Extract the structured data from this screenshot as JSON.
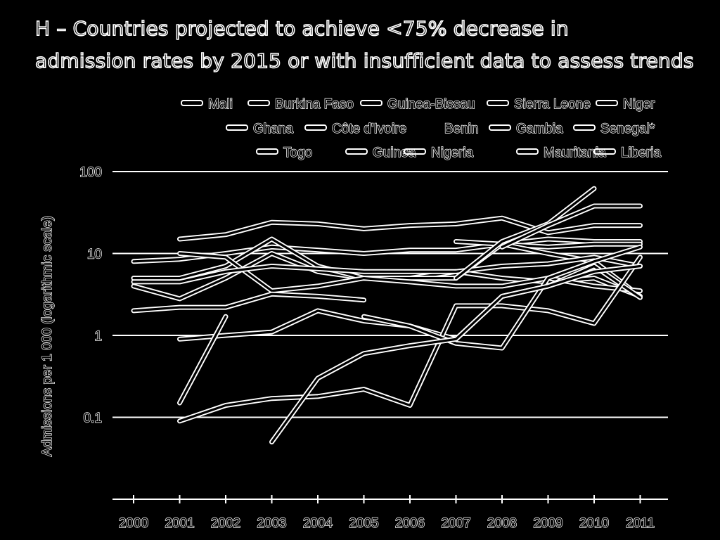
{
  "chart_data": {
    "type": "line",
    "title_line1": "H – Countries projected to achieve <75% decrease in",
    "title_line2": "admission rates by 2015 or with insufficient data to assess trends",
    "ylabel": "Admissions per 1 000 (logarithmic scale)",
    "xlabel": "",
    "y_scale": "log",
    "ylim": [
      0.01,
      100
    ],
    "yticks": [
      "100",
      "10",
      "1",
      "0.1"
    ],
    "x": [
      "2000",
      "2001",
      "2002",
      "2003",
      "2004",
      "2005",
      "2006",
      "2007",
      "2008",
      "2009",
      "2010",
      "2011"
    ],
    "grid": "horizontal",
    "legend_position": "top",
    "series": [
      {
        "name": "Mali",
        "values": [
          8,
          8.5,
          10,
          12,
          11,
          10,
          11,
          11,
          13,
          15,
          14,
          14
        ]
      },
      {
        "name": "Burkina Faso",
        "values": [
          null,
          15,
          17,
          24,
          23,
          20,
          22,
          23,
          27,
          18,
          22,
          22
        ]
      },
      {
        "name": "Guinea-Bissau",
        "values": [
          4,
          2.8,
          5,
          10,
          6,
          5,
          5,
          6,
          5,
          4.5,
          5,
          3
        ]
      },
      {
        "name": "Sierra Leone",
        "values": [
          null,
          null,
          null,
          null,
          null,
          null,
          null,
          14,
          13,
          12,
          13,
          13
        ]
      },
      {
        "name": "Niger",
        "values": [
          5,
          5,
          7,
          15,
          7,
          5,
          5,
          5,
          13,
          10,
          8,
          3
        ]
      },
      {
        "name": "Ghana",
        "values": [
          null,
          10,
          9,
          3.5,
          4,
          5,
          4.5,
          4,
          4,
          5,
          4,
          3.5
        ]
      },
      {
        "name": "Côte d'Ivoire",
        "values": [
          2,
          2.2,
          2.2,
          3.2,
          3,
          2.7,
          null,
          null,
          null,
          null,
          null,
          null
        ]
      },
      {
        "name": "Benin",
        "values": [
          4.5,
          4.5,
          6,
          7,
          6.5,
          6,
          6,
          6,
          7,
          7.5,
          9,
          7
        ]
      },
      {
        "name": "Gambia",
        "values": [
          null,
          0.9,
          1.0,
          1.1,
          2.0,
          1.5,
          1.3,
          0.9,
          3.0,
          4.0,
          7,
          2.9
        ]
      },
      {
        "name": "Senegal*",
        "values": [
          null,
          0.15,
          1.7,
          null,
          null,
          null,
          null,
          null,
          null,
          null,
          null,
          null
        ]
      },
      {
        "name": "Togo",
        "values": [
          null,
          0.09,
          0.14,
          0.17,
          0.18,
          0.22,
          0.14,
          2.3,
          2.3,
          2.0,
          1.4,
          9
        ]
      },
      {
        "name": "Guinea",
        "values": [
          null,
          null,
          null,
          null,
          null,
          1.7,
          1.3,
          0.8,
          0.7,
          5,
          8,
          12
        ]
      },
      {
        "name": "Nigeria",
        "values": [
          null,
          null,
          null,
          0.05,
          0.3,
          0.6,
          0.75,
          0.9,
          3,
          4,
          6,
          7
        ]
      },
      {
        "name": "Mauritania",
        "values": [
          null,
          null,
          null,
          null,
          null,
          null,
          null,
          5,
          14,
          23,
          62,
          null
        ]
      },
      {
        "name": "Liberia",
        "values": [
          null,
          null,
          null,
          null,
          null,
          null,
          null,
          null,
          12,
          22,
          38,
          38
        ]
      }
    ]
  }
}
